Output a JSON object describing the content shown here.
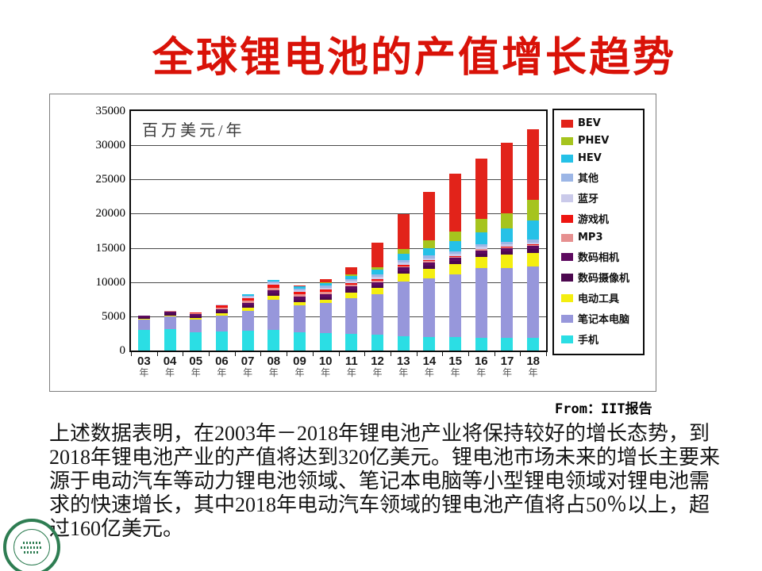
{
  "title": "全球锂电池的产值增长趋势",
  "source_caption": "From：IIT报告",
  "body_text_lines": [
    "上述数据表明，在2003年－2018年锂电池产业将保持较好的增长态势，到",
    "2018年锂电池产业的产值将达到320亿美元。锂电池市场未来的增长主要来",
    "源于电动汽车等动力锂电池领域、笔记本电脑等小型锂电领域对锂电池需",
    "求的快速增长，其中2018年电动汽车领域的锂电池产值将占50％以上，超",
    "过160亿美元。"
  ],
  "chart_data": {
    "type": "bar",
    "stacked": true,
    "unit_label": "百万美元/年",
    "categories": [
      "03",
      "04",
      "05",
      "06",
      "07",
      "08",
      "09",
      "10",
      "11",
      "12",
      "13",
      "14",
      "15",
      "16",
      "17",
      "18"
    ],
    "x_tick_suffix": "年",
    "ylim": [
      0,
      35000
    ],
    "y_tick_step": 5000,
    "y_ticks": [
      0,
      5000,
      10000,
      15000,
      20000,
      25000,
      30000,
      35000
    ],
    "grid": true,
    "legend_position": "right",
    "legend_order_top_to_bottom": [
      "BEV",
      "PHEV",
      "HEV",
      "其他",
      "蓝牙",
      "游戏机",
      "MP3",
      "数码相机",
      "数码摄像机",
      "电动工具",
      "笔记本电脑",
      "手机"
    ],
    "series": [
      {
        "name": "手机",
        "color": "#2bdee4",
        "values": [
          3000,
          3100,
          2700,
          2800,
          2900,
          3000,
          2700,
          2600,
          2400,
          2300,
          2100,
          2000,
          2000,
          1900,
          1900,
          1800
        ]
      },
      {
        "name": "笔记本电脑",
        "color": "#9797db",
        "values": [
          1500,
          1850,
          1800,
          2350,
          2900,
          4400,
          3900,
          4300,
          5300,
          5900,
          8000,
          8600,
          9100,
          10100,
          10200,
          10500
        ]
      },
      {
        "name": "电动工具",
        "color": "#f4ee10",
        "values": [
          100,
          150,
          200,
          250,
          450,
          550,
          450,
          500,
          800,
          900,
          1100,
          1300,
          1500,
          1700,
          1900,
          2000
        ]
      },
      {
        "name": "数码摄像机",
        "color": "#4c084f",
        "values": [
          250,
          300,
          300,
          300,
          350,
          400,
          400,
          400,
          400,
          400,
          450,
          450,
          450,
          450,
          500,
          500
        ]
      },
      {
        "name": "数码相机",
        "color": "#5d0a5f",
        "values": [
          250,
          300,
          300,
          350,
          400,
          450,
          450,
          450,
          450,
          450,
          500,
          500,
          500,
          500,
          500,
          500
        ]
      },
      {
        "name": "MP3",
        "color": "#e69090",
        "values": [
          0,
          100,
          150,
          250,
          300,
          350,
          300,
          300,
          250,
          250,
          200,
          200,
          150,
          150,
          100,
          100
        ]
      },
      {
        "name": "游戏机",
        "color": "#ee1511",
        "values": [
          0,
          0,
          150,
          300,
          400,
          450,
          400,
          400,
          300,
          250,
          200,
          150,
          150,
          100,
          100,
          100
        ]
      },
      {
        "name": "蓝牙",
        "color": "#cacaea",
        "values": [
          0,
          0,
          0,
          100,
          150,
          200,
          200,
          250,
          250,
          300,
          300,
          300,
          300,
          300,
          300,
          300
        ]
      },
      {
        "name": "其他",
        "color": "#9cb6e6",
        "values": [
          0,
          0,
          0,
          0,
          150,
          250,
          250,
          300,
          300,
          350,
          350,
          400,
          400,
          400,
          400,
          400
        ]
      },
      {
        "name": "HEV",
        "color": "#25c1e7",
        "values": [
          0,
          0,
          0,
          0,
          200,
          250,
          300,
          400,
          500,
          700,
          900,
          1100,
          1400,
          1700,
          2000,
          2800
        ]
      },
      {
        "name": "PHEV",
        "color": "#a6c41e",
        "values": [
          0,
          0,
          0,
          0,
          0,
          0,
          0,
          100,
          150,
          400,
          700,
          1100,
          1500,
          1900,
          2200,
          3000
        ]
      },
      {
        "name": "BEV",
        "color": "#e2231a",
        "values": [
          0,
          0,
          0,
          0,
          0,
          0,
          150,
          500,
          1100,
          3600,
          5200,
          7100,
          8450,
          8900,
          10300,
          10400
        ]
      }
    ]
  }
}
